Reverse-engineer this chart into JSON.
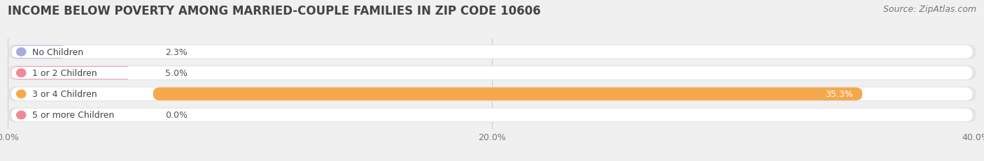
{
  "title": "INCOME BELOW POVERTY AMONG MARRIED-COUPLE FAMILIES IN ZIP CODE 10606",
  "source": "Source: ZipAtlas.com",
  "categories": [
    "No Children",
    "1 or 2 Children",
    "3 or 4 Children",
    "5 or more Children"
  ],
  "values": [
    2.3,
    5.0,
    35.3,
    0.0
  ],
  "bar_colors": [
    "#aaaadd",
    "#f08898",
    "#f5a84e",
    "#f08898"
  ],
  "dot_colors": [
    "#aaaadd",
    "#f08898",
    "#f5a84e",
    "#f08898"
  ],
  "xlim": [
    0,
    40
  ],
  "xticks": [
    0.0,
    20.0,
    40.0
  ],
  "xtick_labels": [
    "0.0%",
    "20.0%",
    "40.0%"
  ],
  "background_color": "#f0f0f0",
  "bar_bg_color": "#e4e4e4",
  "bar_bg_inner_color": "#ffffff",
  "title_fontsize": 12,
  "source_fontsize": 9,
  "label_fontsize": 9,
  "tick_fontsize": 9,
  "bar_height": 0.62
}
